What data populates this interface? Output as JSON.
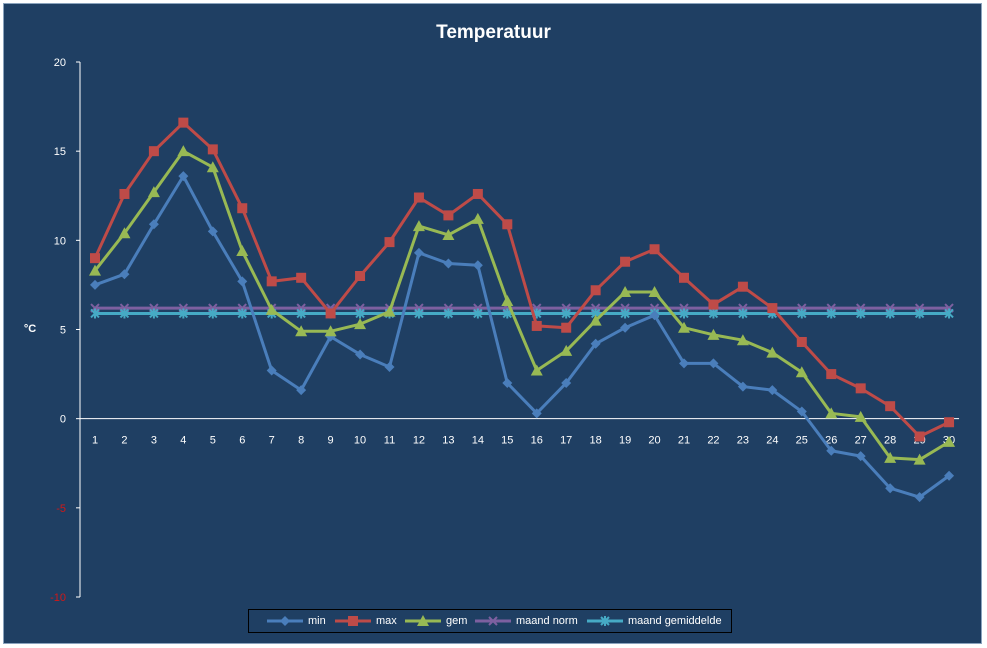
{
  "chart_data": {
    "type": "line",
    "title": "Temperatuur",
    "ylabel": "°C",
    "xlabel": "",
    "ylim": [
      -10,
      20
    ],
    "yticks": [
      "20",
      "15",
      "10",
      "5",
      "0",
      "-5",
      "-10"
    ],
    "categories": [
      "1",
      "2",
      "3",
      "4",
      "5",
      "6",
      "7",
      "8",
      "9",
      "10",
      "11",
      "12",
      "13",
      "14",
      "15",
      "16",
      "17",
      "18",
      "19",
      "20",
      "21",
      "22",
      "23",
      "24",
      "25",
      "26",
      "27",
      "28",
      "29",
      "30"
    ],
    "series": [
      {
        "name": "min",
        "color": "#4a7ebb",
        "marker": "diamond",
        "values": [
          7.5,
          8.1,
          10.9,
          13.6,
          10.5,
          7.7,
          2.7,
          1.6,
          4.6,
          3.6,
          2.9,
          9.3,
          8.7,
          8.6,
          2.0,
          0.3,
          2.0,
          4.2,
          5.1,
          5.8,
          3.1,
          3.1,
          1.8,
          1.6,
          0.4,
          -1.8,
          -2.1,
          -3.9,
          -4.4,
          -3.2
        ]
      },
      {
        "name": "max",
        "color": "#be4b48",
        "marker": "square",
        "values": [
          9.0,
          12.6,
          15.0,
          16.6,
          15.1,
          11.8,
          7.7,
          7.9,
          5.9,
          8.0,
          9.9,
          12.4,
          11.4,
          12.6,
          10.9,
          5.2,
          5.1,
          7.2,
          8.8,
          9.5,
          7.9,
          6.4,
          7.4,
          6.2,
          4.3,
          2.5,
          1.7,
          0.7,
          -1.0,
          -0.2
        ]
      },
      {
        "name": "gem",
        "color": "#98b954",
        "marker": "triangle",
        "values": [
          8.3,
          10.4,
          12.7,
          15.0,
          14.1,
          9.4,
          6.1,
          4.9,
          4.9,
          5.3,
          6.0,
          10.8,
          10.3,
          11.2,
          6.6,
          2.7,
          3.8,
          5.5,
          7.1,
          7.1,
          5.1,
          4.7,
          4.4,
          3.7,
          2.6,
          0.3,
          0.1,
          -2.2,
          -2.3,
          -1.3
        ]
      },
      {
        "name": "maand norm",
        "color": "#7d60a0",
        "marker": "x",
        "values": [
          6.2,
          6.2,
          6.2,
          6.2,
          6.2,
          6.2,
          6.2,
          6.2,
          6.2,
          6.2,
          6.2,
          6.2,
          6.2,
          6.2,
          6.2,
          6.2,
          6.2,
          6.2,
          6.2,
          6.2,
          6.2,
          6.2,
          6.2,
          6.2,
          6.2,
          6.2,
          6.2,
          6.2,
          6.2,
          6.2
        ]
      },
      {
        "name": "maand gemiddelde",
        "color": "#46aac5",
        "marker": "star",
        "values": [
          5.9,
          5.9,
          5.9,
          5.9,
          5.9,
          5.9,
          5.9,
          5.9,
          5.9,
          5.9,
          5.9,
          5.9,
          5.9,
          5.9,
          5.9,
          5.9,
          5.9,
          5.9,
          5.9,
          5.9,
          5.9,
          5.9,
          5.9,
          5.9,
          5.9,
          5.9,
          5.9,
          5.9,
          5.9,
          5.9
        ]
      }
    ],
    "grid": false,
    "legend": "bottom"
  }
}
